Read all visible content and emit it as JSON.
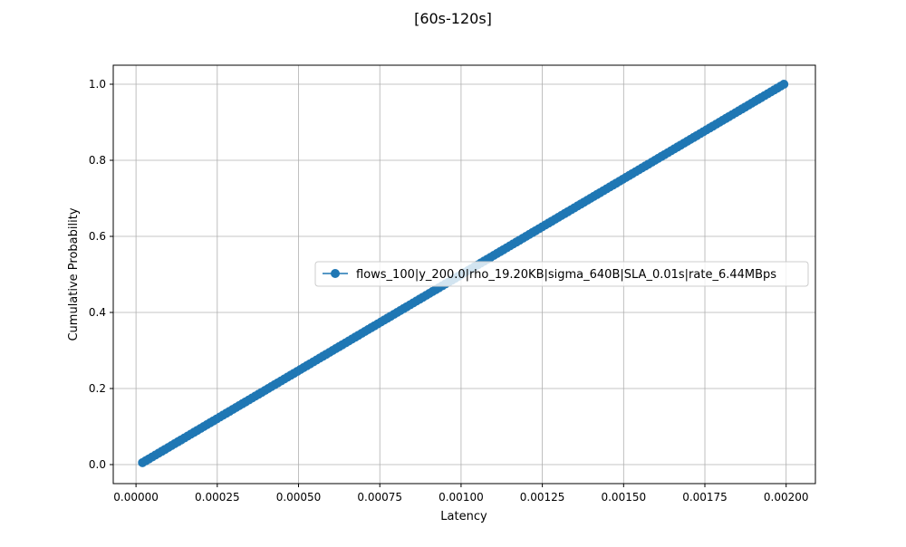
{
  "chart_data": {
    "type": "line",
    "title": "[60s-120s]",
    "xlabel": "Latency",
    "ylabel": "Cumulative Probability",
    "xlim": [
      -7e-05,
      0.00209
    ],
    "ylim": [
      -0.05,
      1.05
    ],
    "x_ticks": [
      0.0,
      0.00025,
      0.0005,
      0.00075,
      0.001,
      0.00125,
      0.0015,
      0.00175,
      0.002
    ],
    "x_tick_labels": [
      "0.00000",
      "0.00025",
      "0.00050",
      "0.00075",
      "0.00100",
      "0.00125",
      "0.00150",
      "0.00175",
      "0.00200"
    ],
    "y_ticks": [
      0.0,
      0.2,
      0.4,
      0.6,
      0.8,
      1.0
    ],
    "y_tick_labels": [
      "0.0",
      "0.2",
      "0.4",
      "0.6",
      "0.8",
      "1.0"
    ],
    "grid": true,
    "legend_position": "center-right",
    "series": [
      {
        "name": "flows_100|y_200.0|rho_19.20KB|sigma_640B|SLA_0.01s|rate_6.44MBps",
        "color": "#1f77b4",
        "marker": "circle",
        "x_start": 2e-05,
        "x_end": 0.001993,
        "y_start": 0.005,
        "y_end": 1.0,
        "points": 200
      }
    ]
  }
}
